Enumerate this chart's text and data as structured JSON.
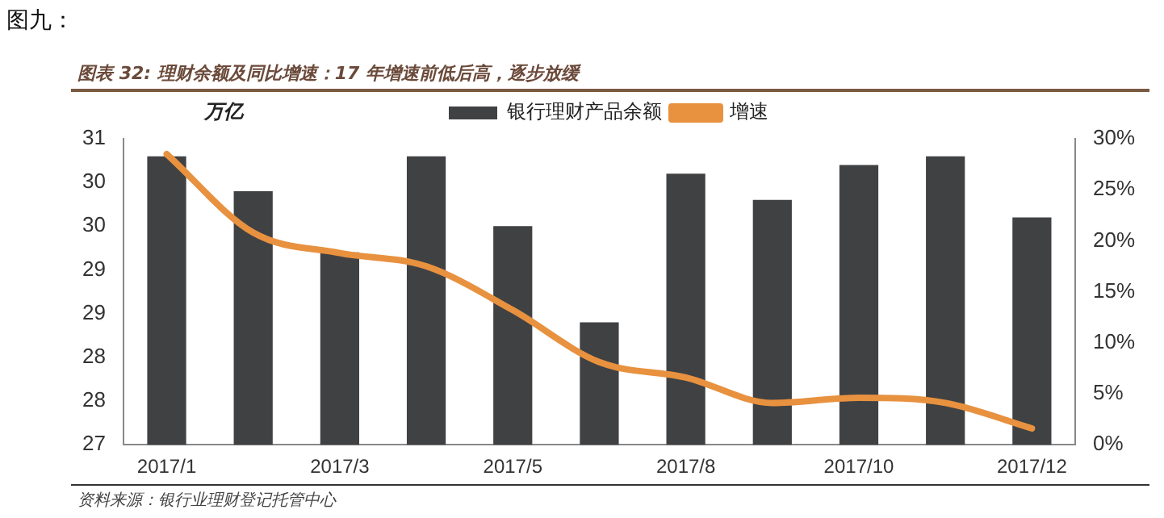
{
  "chart_data": {
    "type": "bar",
    "title": "图表 32: 理财余额及同比增速：17 年增速前低后高，逐步放缓",
    "ylabel": "万亿",
    "annotations": [
      "图九：",
      "资料来源：银行业理财登记托管中心"
    ],
    "categories": [
      "2017/1",
      null,
      "2017/3",
      null,
      "2017/5",
      null,
      "2017/8",
      null,
      "2017/10",
      null,
      "2017/12"
    ],
    "series": [
      {
        "name": "银行理财产品余额",
        "color": "#404143",
        "values": [
          30.3,
          29.9,
          29.2,
          30.3,
          29.5,
          28.4,
          30.1,
          29.8,
          30.2,
          30.3,
          29.6
        ]
      },
      {
        "name": "增速",
        "type": "line",
        "axis": "y2",
        "color": "#e8913f",
        "values": [
          28.5,
          20.8,
          18.8,
          17.5,
          13.2,
          8.1,
          6.6,
          4.1,
          4.6,
          4.1,
          1.6
        ]
      }
    ],
    "ylim": [
      27,
      30.5
    ],
    "yticks": [
      {
        "value": 27,
        "label": "27"
      },
      {
        "value": 27.5,
        "label": "28"
      },
      {
        "value": 28,
        "label": "28"
      },
      {
        "value": 28.5,
        "label": "29"
      },
      {
        "value": 29,
        "label": "29"
      },
      {
        "value": 29.5,
        "label": "30"
      },
      {
        "value": 30,
        "label": "30"
      },
      {
        "value": 30.5,
        "label": "31"
      }
    ],
    "y2lim": [
      0,
      30
    ],
    "y2ticks": [
      {
        "value": 0,
        "label": "0%"
      },
      {
        "value": 5,
        "label": "5%"
      },
      {
        "value": 10,
        "label": "10%"
      },
      {
        "value": 15,
        "label": "15%"
      },
      {
        "value": 20,
        "label": "20%"
      },
      {
        "value": 25,
        "label": "25%"
      },
      {
        "value": 30,
        "label": "30%"
      }
    ],
    "grid": false,
    "legend": "top",
    "marker": "none",
    "line_style": "solid"
  }
}
